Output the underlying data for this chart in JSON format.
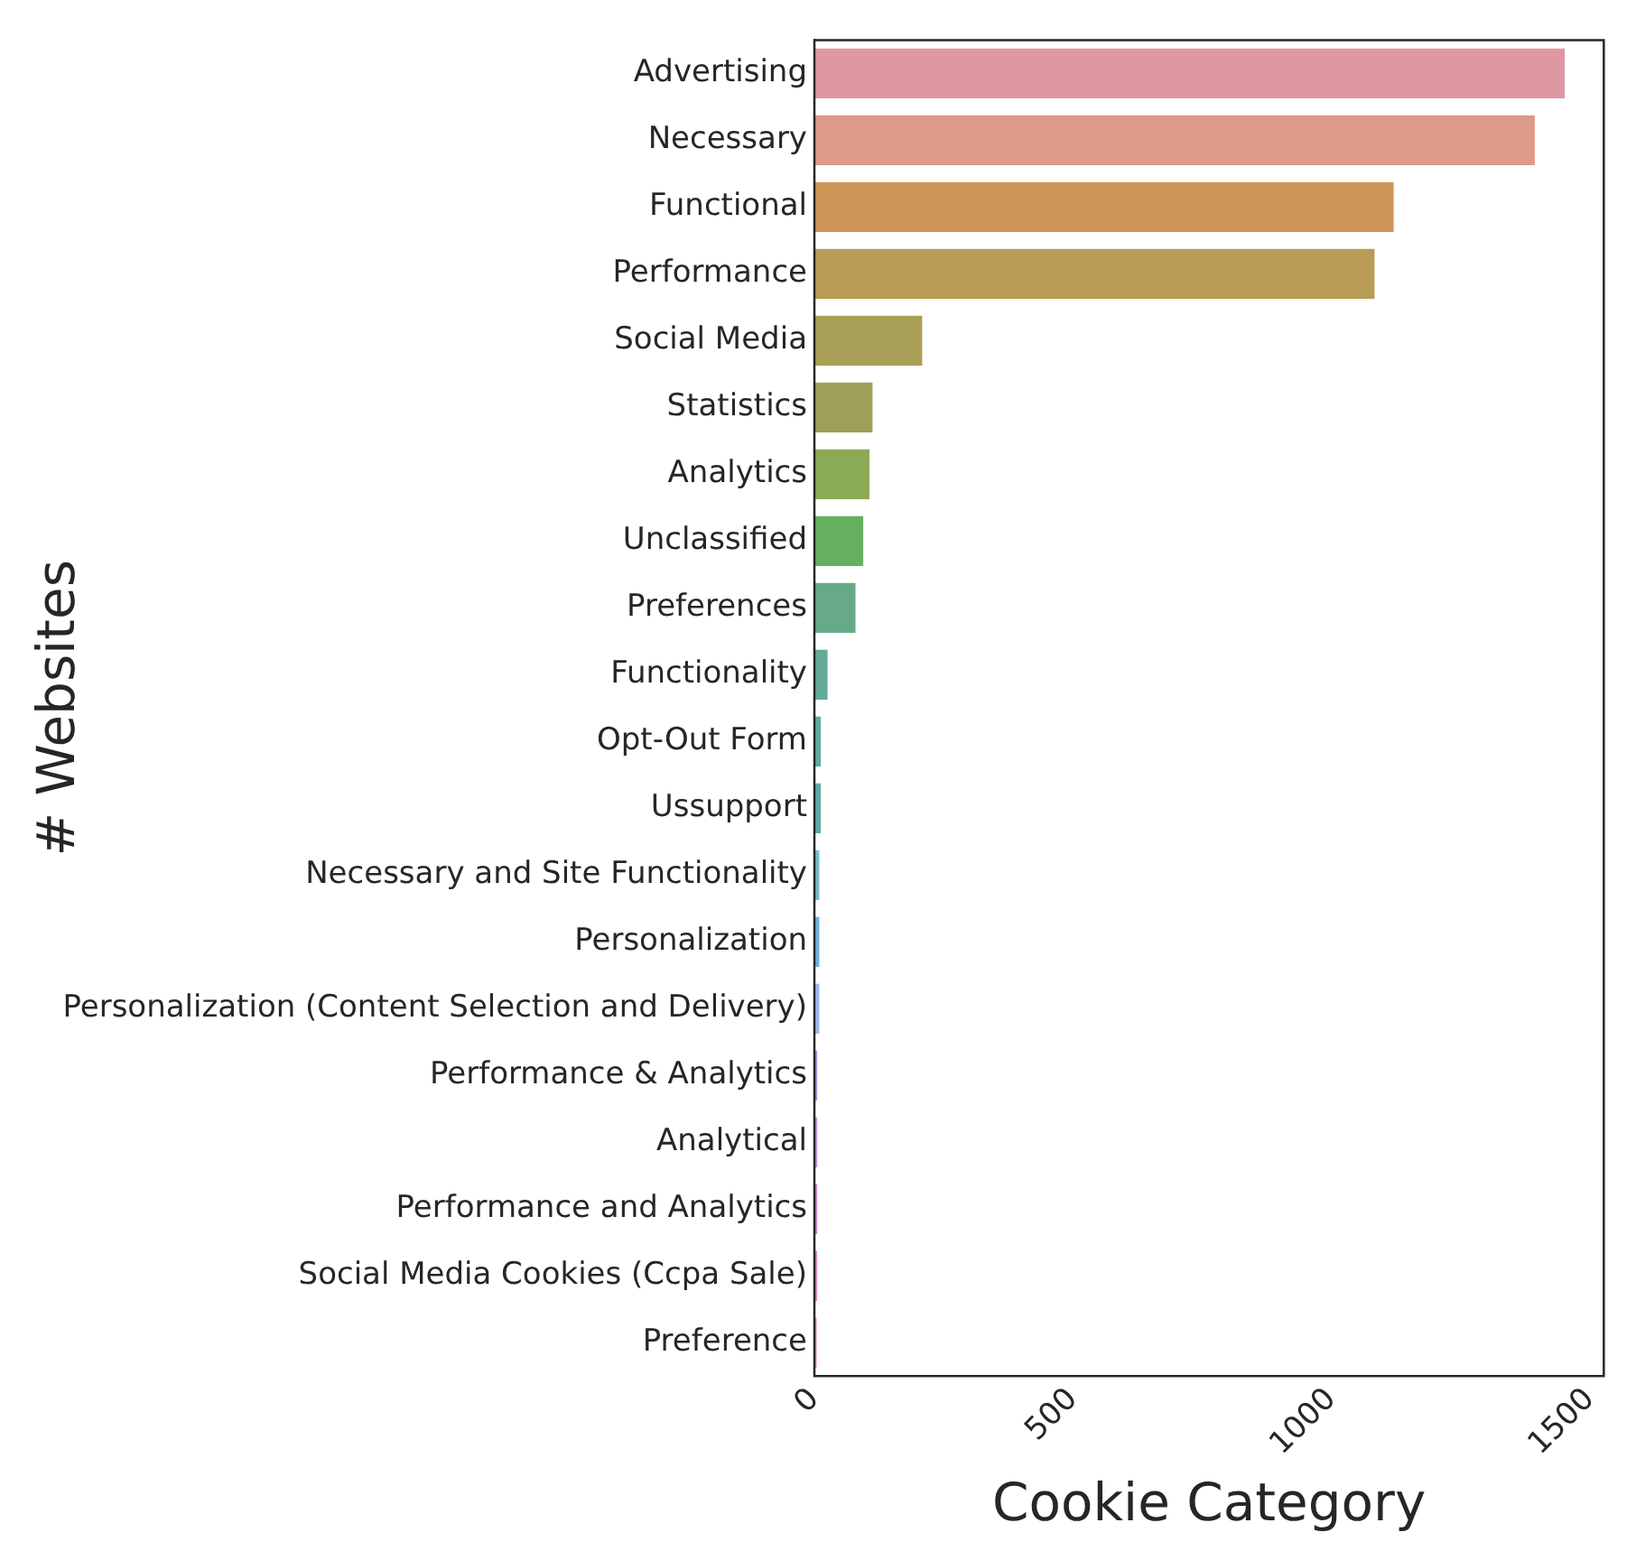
{
  "chart_data": {
    "type": "bar",
    "orientation": "horizontal",
    "xlabel": "Cookie Category",
    "ylabel": "# Websites",
    "categories": [
      "Advertising",
      "Necessary",
      "Functional",
      "Performance",
      "Social Media",
      "Statistics",
      "Analytics",
      "Unclassified",
      "Preferences",
      "Functionality",
      "Opt-Out Form",
      "Ussupport",
      "Necessary and Site Functionality",
      "Personalization",
      "Personalization (Content Selection and Delivery)",
      "Performance & Analytics",
      "Analytical",
      "Performance and Analytics",
      "Social Media Cookies (Ccpa Sale)",
      "Preference"
    ],
    "values": [
      1455,
      1397,
      1124,
      1087,
      212,
      116,
      110,
      98,
      83,
      29,
      16,
      16,
      13,
      13,
      13,
      9,
      9,
      9,
      9,
      8
    ],
    "colors": [
      "#de98a2",
      "#dd9a86",
      "#cc9658",
      "#b89c56",
      "#a89e55",
      "#9ea05a",
      "#8aaa56",
      "#66b060",
      "#66aa88",
      "#66aa99",
      "#5eaa9e",
      "#5ea9a4",
      "#77bbcc",
      "#6fb0dd",
      "#a0b4ee",
      "#a09ae0",
      "#c094dd",
      "#cc88cc",
      "#d98cc0",
      "#e09ab0"
    ],
    "xlim": [
      0,
      1527
    ],
    "xticks": [
      0,
      500,
      1000,
      1500
    ],
    "grid": false,
    "legend": false
  }
}
